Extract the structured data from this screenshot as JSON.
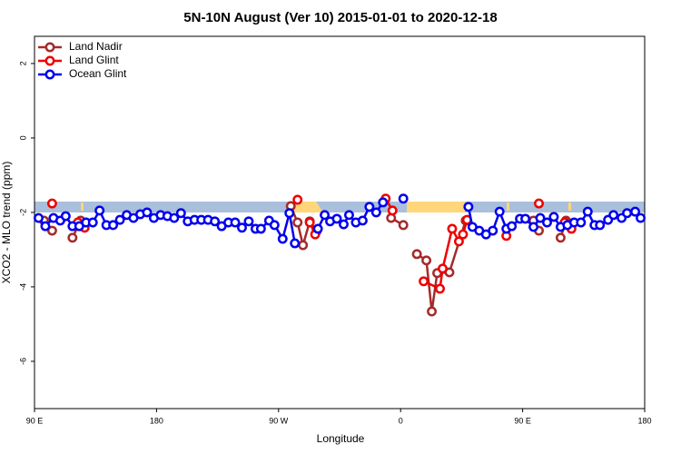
{
  "chart_data": {
    "type": "line",
    "title": "5N-10N August (Ver 10)   2015-01-01 to 2020-12-18",
    "x_label": "Longitude",
    "y_label": "XCO2 - MLO trend (ppm)",
    "xlim": [
      90,
      540
    ],
    "xticks": [
      {
        "value": 90,
        "label": "90 E"
      },
      {
        "value": 180,
        "label": "180"
      },
      {
        "value": 270,
        "label": "90 W"
      },
      {
        "value": 360,
        "label": "0"
      },
      {
        "value": 450,
        "label": "90 E"
      },
      {
        "value": 540,
        "label": "180"
      }
    ],
    "ylim": [
      -7.27,
      2.73
    ],
    "yticks": [
      -6,
      -4,
      -2,
      0,
      2
    ],
    "legend": "top-left",
    "series": [
      {
        "name": "Land Nadir",
        "color": "#a52a2a",
        "x": [
          97,
          103,
          null,
          118,
          124,
          null,
          279,
          284,
          288,
          293,
          298,
          null,
          353,
          362,
          null,
          372,
          379,
          383,
          387,
          396,
          408,
          null,
          458,
          462,
          null,
          478,
          482
        ],
        "values": [
          -2.22,
          -2.49,
          null,
          -2.68,
          -2.22,
          null,
          -1.83,
          -2.27,
          -2.88,
          -2.24,
          -2.51,
          null,
          -2.15,
          -2.34,
          null,
          -3.12,
          -3.29,
          -4.66,
          -3.63,
          -3.61,
          -2.22,
          null,
          -2.22,
          -2.49,
          null,
          -2.68,
          -2.22
        ]
      },
      {
        "name": "Land Glint",
        "color": "#ee0000",
        "x": [
          103,
          null,
          122,
          127,
          null,
          284,
          null,
          293,
          297,
          null,
          349,
          354,
          null,
          377,
          389,
          391,
          398,
          403,
          406,
          409,
          null,
          438,
          null,
          462,
          null,
          481,
          486
        ],
        "values": [
          -1.76,
          null,
          -2.27,
          -2.41,
          null,
          -1.66,
          null,
          -2.27,
          -2.59,
          null,
          -1.63,
          -1.95,
          null,
          -3.85,
          -4.05,
          -3.51,
          -2.44,
          -2.78,
          -2.59,
          -2.2,
          null,
          -2.63,
          null,
          -1.76,
          null,
          -2.27,
          -2.44
        ]
      },
      {
        "name": "Ocean Glint",
        "color": "#0000ee",
        "x": [
          93,
          98,
          104,
          109,
          113,
          118,
          123,
          128,
          133,
          138,
          143,
          148,
          153,
          158,
          163,
          168,
          173,
          178,
          183,
          188,
          193,
          198,
          203,
          208,
          213,
          218,
          223,
          228,
          233,
          238,
          243,
          248,
          253,
          257,
          263,
          267,
          273,
          278,
          282,
          null,
          299,
          304,
          308,
          313,
          318,
          322,
          327,
          332,
          337,
          342,
          347,
          null,
          362,
          null,
          410,
          413,
          418,
          423,
          428,
          433,
          438,
          442,
          448,
          452,
          458,
          463,
          468,
          473,
          478,
          483,
          488,
          493,
          498,
          503,
          507,
          513,
          517,
          523,
          527,
          533,
          537
        ],
        "values": [
          -2.15,
          -2.37,
          -2.15,
          -2.22,
          -2.1,
          -2.37,
          -2.37,
          -2.27,
          -2.27,
          -1.95,
          -2.34,
          -2.34,
          -2.2,
          -2.07,
          -2.15,
          -2.05,
          -2.0,
          -2.15,
          -2.07,
          -2.1,
          -2.15,
          -2.02,
          -2.24,
          -2.2,
          -2.2,
          -2.2,
          -2.24,
          -2.37,
          -2.27,
          -2.27,
          -2.41,
          -2.24,
          -2.44,
          -2.44,
          -2.22,
          -2.34,
          -2.71,
          -2.02,
          -2.83,
          null,
          -2.44,
          -2.07,
          -2.24,
          -2.17,
          -2.32,
          -2.07,
          -2.27,
          -2.22,
          -1.85,
          -2.0,
          -1.73,
          null,
          -1.63,
          null,
          -1.85,
          -2.39,
          -2.49,
          -2.59,
          -2.49,
          -1.98,
          -2.44,
          -2.37,
          -2.17,
          -2.17,
          -2.39,
          -2.15,
          -2.27,
          -2.12,
          -2.39,
          -2.34,
          -2.27,
          -2.27,
          -1.98,
          -2.34,
          -2.34,
          -2.2,
          -2.07,
          -2.15,
          -2.02,
          -1.98,
          -2.15
        ]
      }
    ]
  }
}
